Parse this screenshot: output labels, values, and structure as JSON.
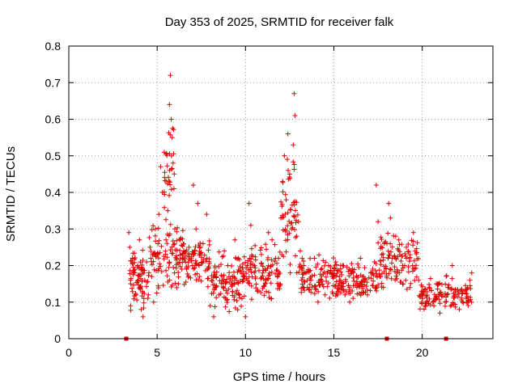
{
  "chart_data": {
    "type": "scatter",
    "title": "Day 353 of 2025, SRMTID for receiver falk",
    "xlabel": "GPS time / hours",
    "ylabel": "SRMTID / TECUs",
    "xlim": [
      0,
      24
    ],
    "ylim": [
      0,
      0.8
    ],
    "x_ticks": [
      0,
      5,
      10,
      15,
      20
    ],
    "x_tick_labels": [
      "0",
      "5",
      "10",
      "15",
      "20"
    ],
    "y_ticks": [
      0,
      0.1,
      0.2,
      0.3,
      0.4,
      0.5,
      0.6,
      0.7,
      0.8
    ],
    "y_tick_labels": [
      "0",
      "0.1",
      "0.2",
      "0.3",
      "0.4",
      "0.5",
      "0.6",
      "0.7",
      "0.8"
    ],
    "grid": true,
    "marker": "+",
    "color": "#e00000",
    "series": [
      {
        "name": "SRMTID",
        "points": [
          [
            3.4,
            0.29
          ],
          [
            3.45,
            0.25
          ],
          [
            3.5,
            0.15
          ],
          [
            3.5,
            0.09
          ],
          [
            3.6,
            0.22
          ],
          [
            3.7,
            0.18
          ],
          [
            3.8,
            0.12
          ],
          [
            3.9,
            0.2
          ],
          [
            4.0,
            0.27
          ],
          [
            4.05,
            0.14
          ],
          [
            4.1,
            0.08
          ],
          [
            4.2,
            0.06
          ],
          [
            4.25,
            0.11
          ],
          [
            4.3,
            0.16
          ],
          [
            4.4,
            0.21
          ],
          [
            4.5,
            0.12
          ],
          [
            4.6,
            0.25
          ],
          [
            4.7,
            0.17
          ],
          [
            4.8,
            0.1
          ],
          [
            4.9,
            0.3
          ],
          [
            5.0,
            0.23
          ],
          [
            5.1,
            0.34
          ],
          [
            5.2,
            0.47
          ],
          [
            5.3,
            0.4
          ],
          [
            5.4,
            0.51
          ],
          [
            5.5,
            0.27
          ],
          [
            5.6,
            0.35
          ],
          [
            5.7,
            0.64
          ],
          [
            5.75,
            0.72
          ],
          [
            5.8,
            0.6
          ],
          [
            5.85,
            0.55
          ],
          [
            5.9,
            0.48
          ],
          [
            5.95,
            0.41
          ],
          [
            6.0,
            0.3
          ],
          [
            6.1,
            0.22
          ],
          [
            6.2,
            0.15
          ],
          [
            6.3,
            0.27
          ],
          [
            6.4,
            0.19
          ],
          [
            6.5,
            0.24
          ],
          [
            6.6,
            0.21
          ],
          [
            6.8,
            0.25
          ],
          [
            7.0,
            0.2
          ],
          [
            7.05,
            0.42
          ],
          [
            7.2,
            0.3
          ],
          [
            7.3,
            0.37
          ],
          [
            7.4,
            0.17
          ],
          [
            7.6,
            0.26
          ],
          [
            7.8,
            0.34
          ],
          [
            8.0,
            0.09
          ],
          [
            8.2,
            0.06
          ],
          [
            8.3,
            0.14
          ],
          [
            8.5,
            0.12
          ],
          [
            8.7,
            0.17
          ],
          [
            8.8,
            0.24
          ],
          [
            9.0,
            0.2
          ],
          [
            9.2,
            0.15
          ],
          [
            9.4,
            0.27
          ],
          [
            9.6,
            0.22
          ],
          [
            9.8,
            0.11
          ],
          [
            10.0,
            0.06
          ],
          [
            10.1,
            0.2
          ],
          [
            10.2,
            0.37
          ],
          [
            10.3,
            0.31
          ],
          [
            10.5,
            0.18
          ],
          [
            10.7,
            0.13
          ],
          [
            10.9,
            0.23
          ],
          [
            11.1,
            0.19
          ],
          [
            11.3,
            0.29
          ],
          [
            11.5,
            0.27
          ],
          [
            11.7,
            0.22
          ],
          [
            11.9,
            0.15
          ],
          [
            12.0,
            0.33
          ],
          [
            12.1,
            0.43
          ],
          [
            12.2,
            0.5
          ],
          [
            12.3,
            0.38
          ],
          [
            12.4,
            0.56
          ],
          [
            12.5,
            0.45
          ],
          [
            12.6,
            0.3
          ],
          [
            12.7,
            0.53
          ],
          [
            12.75,
            0.67
          ],
          [
            12.8,
            0.61
          ],
          [
            12.9,
            0.28
          ],
          [
            13.0,
            0.32
          ],
          [
            13.1,
            0.24
          ],
          [
            13.3,
            0.2
          ],
          [
            13.5,
            0.14
          ],
          [
            13.7,
            0.16
          ],
          [
            13.9,
            0.22
          ],
          [
            14.1,
            0.1
          ],
          [
            14.3,
            0.16
          ],
          [
            14.5,
            0.12
          ],
          [
            14.7,
            0.2
          ],
          [
            14.9,
            0.17
          ],
          [
            15.1,
            0.21
          ],
          [
            15.3,
            0.15
          ],
          [
            15.5,
            0.2
          ],
          [
            15.7,
            0.13
          ],
          [
            15.9,
            0.1
          ],
          [
            16.1,
            0.18
          ],
          [
            16.3,
            0.14
          ],
          [
            16.5,
            0.22
          ],
          [
            16.7,
            0.16
          ],
          [
            16.9,
            0.12
          ],
          [
            17.1,
            0.18
          ],
          [
            17.3,
            0.21
          ],
          [
            17.4,
            0.42
          ],
          [
            17.5,
            0.32
          ],
          [
            17.6,
            0.17
          ],
          [
            17.8,
            0.14
          ],
          [
            18.0,
            0.26
          ],
          [
            18.1,
            0.37
          ],
          [
            18.2,
            0.33
          ],
          [
            18.3,
            0.22
          ],
          [
            18.5,
            0.28
          ],
          [
            18.7,
            0.18
          ],
          [
            18.9,
            0.15
          ],
          [
            19.1,
            0.22
          ],
          [
            19.3,
            0.14
          ],
          [
            19.5,
            0.29
          ],
          [
            19.6,
            0.24
          ],
          [
            19.8,
            0.16
          ],
          [
            20.0,
            0.12
          ],
          [
            20.2,
            0.09
          ],
          [
            20.4,
            0.14
          ],
          [
            20.6,
            0.1
          ],
          [
            20.8,
            0.15
          ],
          [
            21.0,
            0.07
          ],
          [
            21.1,
            0.12
          ],
          [
            21.3,
            0.1
          ],
          [
            21.5,
            0.14
          ],
          [
            21.7,
            0.2
          ],
          [
            21.9,
            0.12
          ],
          [
            22.1,
            0.08
          ],
          [
            22.3,
            0.13
          ],
          [
            22.5,
            0.1
          ],
          [
            22.7,
            0.16
          ],
          [
            22.8,
            0.18
          ]
        ],
        "density_bands": [
          {
            "x": [
              3.4,
              4.5
            ],
            "y": [
              0.05,
              0.27
            ],
            "n": 70
          },
          {
            "x": [
              4.5,
              6.5
            ],
            "y": [
              0.1,
              0.35
            ],
            "n": 100
          },
          {
            "x": [
              5.4,
              6.0
            ],
            "y": [
              0.25,
              0.7
            ],
            "n": 30
          },
          {
            "x": [
              6.5,
              8.0
            ],
            "y": [
              0.12,
              0.3
            ],
            "n": 80
          },
          {
            "x": [
              8.0,
              10.0
            ],
            "y": [
              0.06,
              0.26
            ],
            "n": 110
          },
          {
            "x": [
              10.0,
              12.0
            ],
            "y": [
              0.08,
              0.28
            ],
            "n": 100
          },
          {
            "x": [
              12.0,
              13.0
            ],
            "y": [
              0.12,
              0.55
            ],
            "n": 55
          },
          {
            "x": [
              13.0,
              15.5
            ],
            "y": [
              0.08,
              0.24
            ],
            "n": 120
          },
          {
            "x": [
              15.5,
              17.5
            ],
            "y": [
              0.08,
              0.23
            ],
            "n": 90
          },
          {
            "x": [
              17.5,
              19.8
            ],
            "y": [
              0.1,
              0.32
            ],
            "n": 110
          },
          {
            "x": [
              19.8,
              22.8
            ],
            "y": [
              0.06,
              0.18
            ],
            "n": 120
          }
        ]
      }
    ],
    "zero_markers_x": [
      3.25,
      18.0,
      21.35
    ]
  }
}
